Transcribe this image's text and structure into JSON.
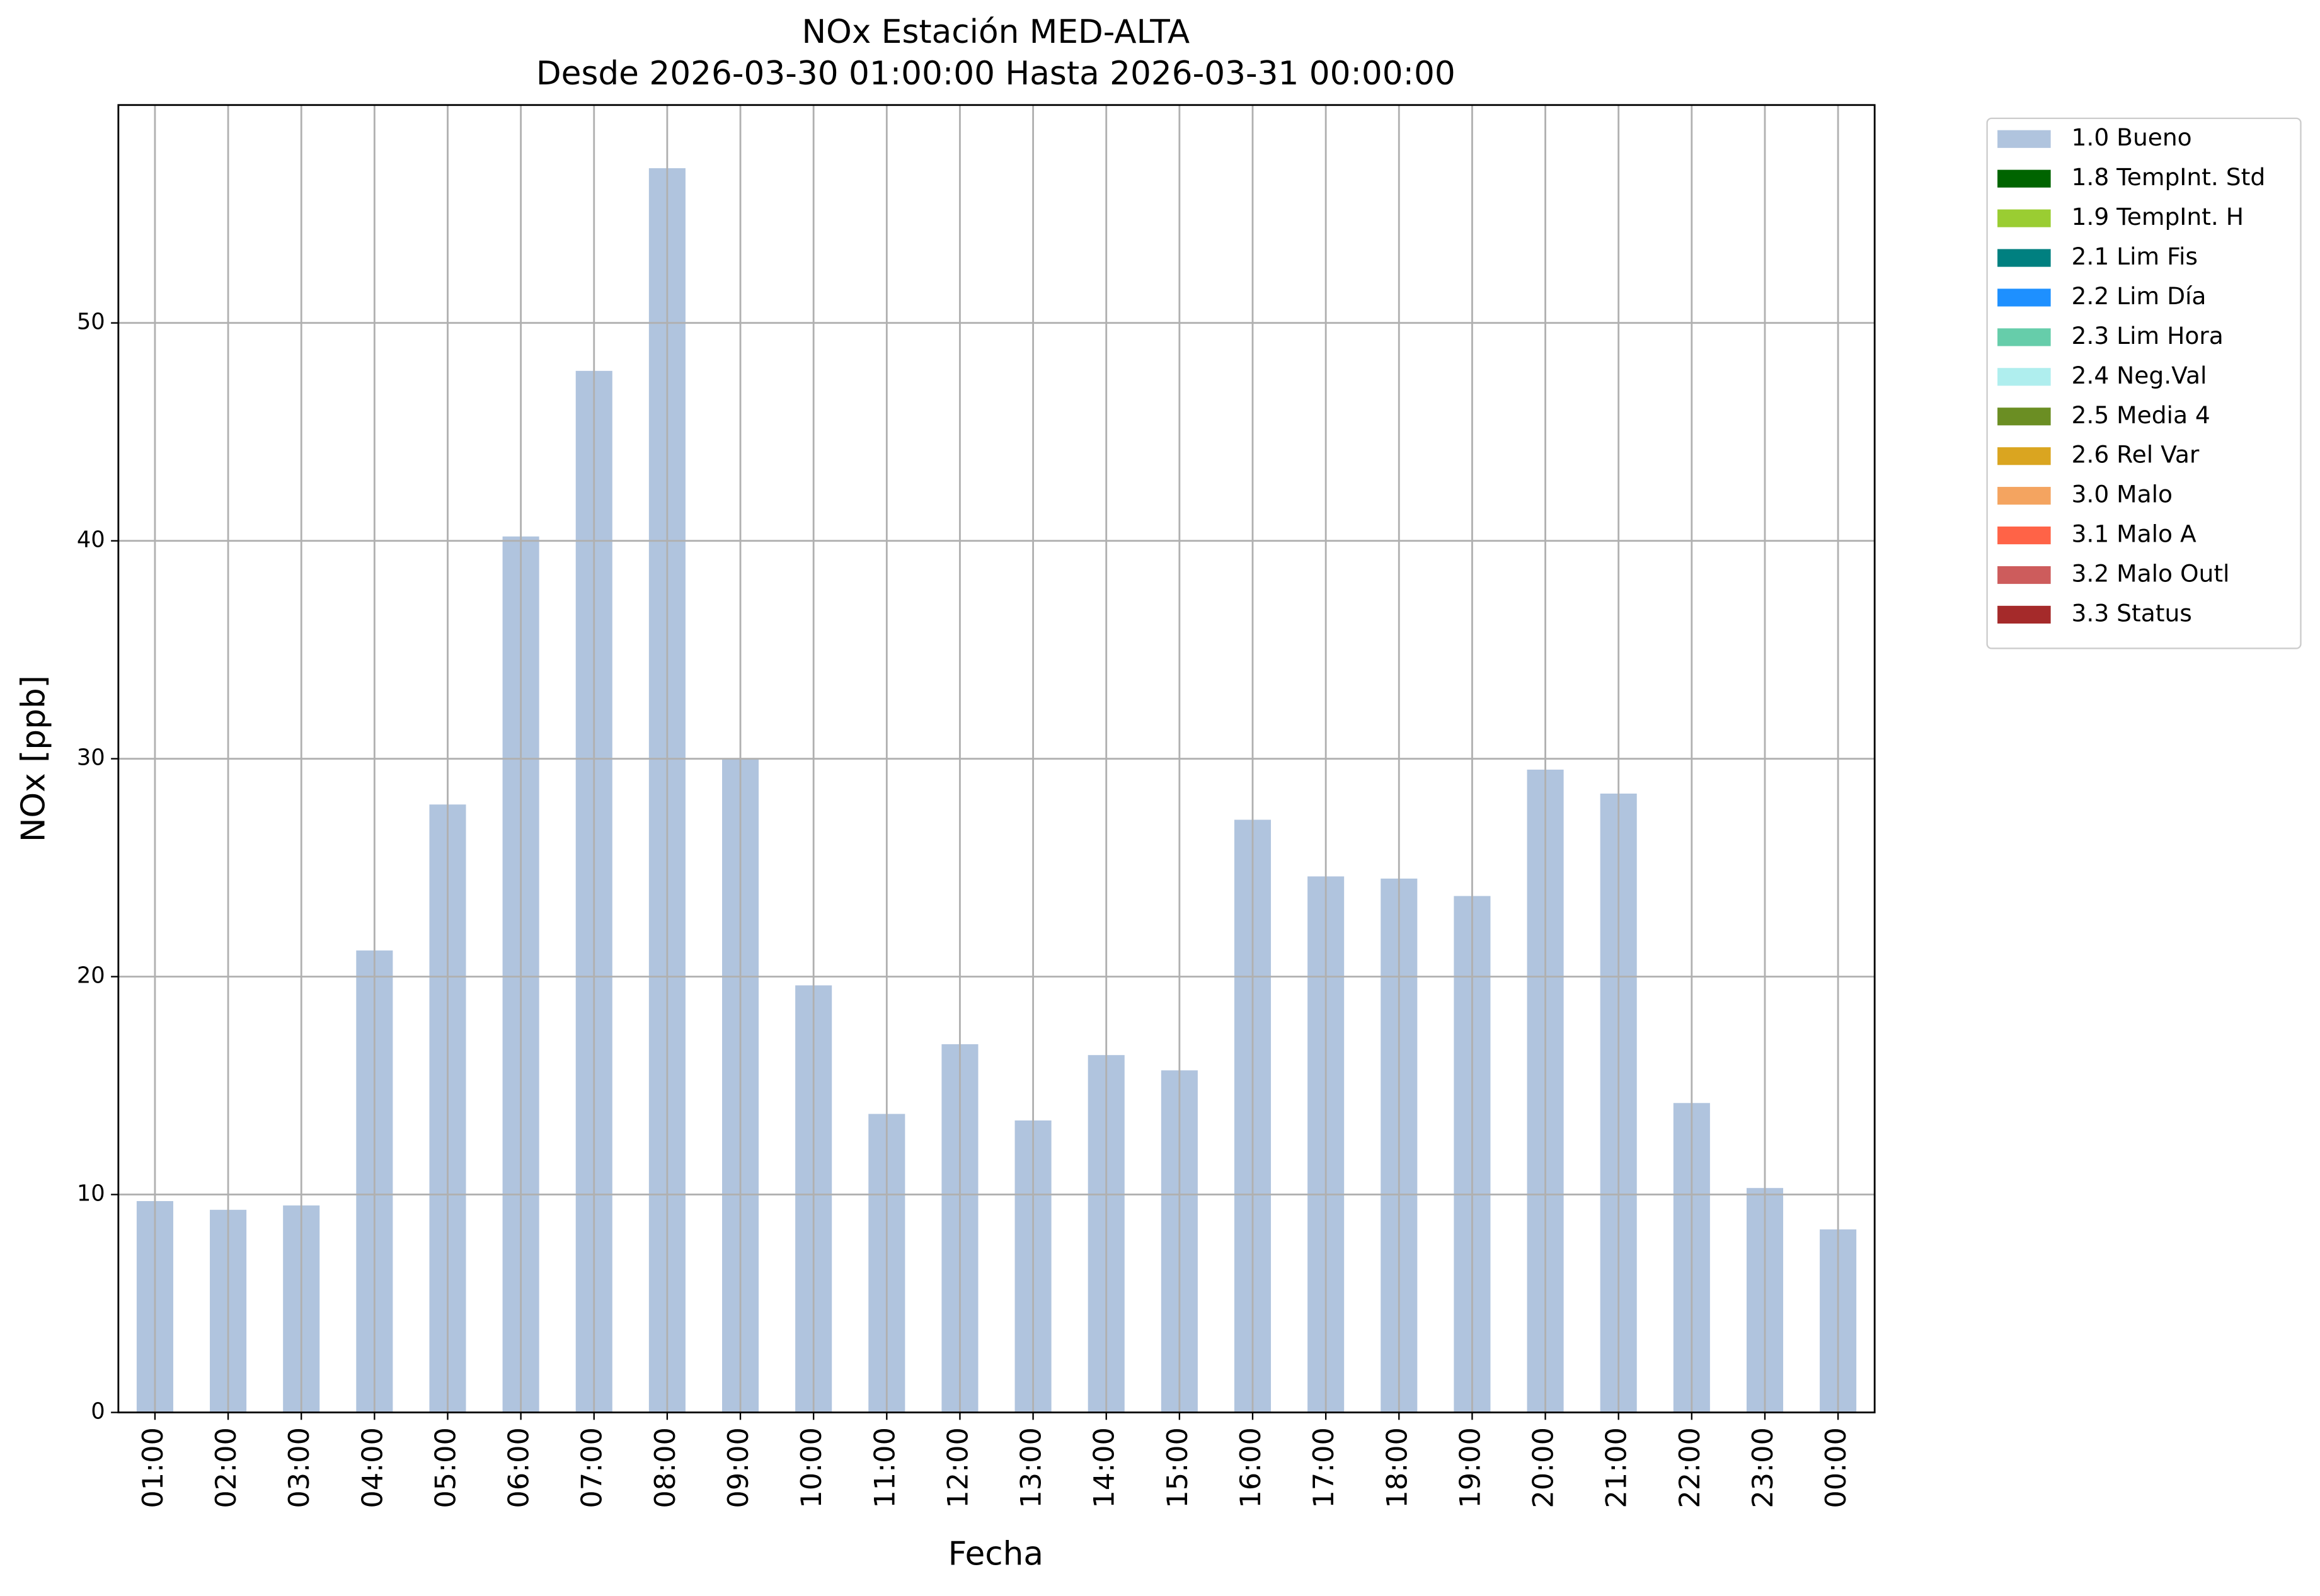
{
  "chart_data": {
    "type": "bar",
    "title": "NOx Estación MED-ALTA",
    "subtitle": "Desde 2026-03-30 01:00:00 Hasta 2026-03-31 00:00:00",
    "x_label": "Fecha",
    "y_label": "NOx [ppb]",
    "categories": [
      "01:00",
      "02:00",
      "03:00",
      "04:00",
      "05:00",
      "06:00",
      "07:00",
      "08:00",
      "09:00",
      "10:00",
      "11:00",
      "12:00",
      "13:00",
      "14:00",
      "15:00",
      "16:00",
      "17:00",
      "18:00",
      "19:00",
      "20:00",
      "21:00",
      "22:00",
      "23:00",
      "00:00"
    ],
    "series": [
      {
        "name": "1.0 Bueno",
        "color": "#b0c4de",
        "values": [
          9.7,
          9.3,
          9.5,
          21.2,
          27.9,
          40.2,
          47.8,
          57.1,
          30.0,
          19.6,
          13.7,
          16.9,
          13.4,
          16.4,
          15.7,
          27.2,
          24.6,
          24.5,
          23.7,
          29.5,
          28.4,
          14.2,
          10.3,
          8.4
        ]
      },
      {
        "name": "1.8 TempInt. Std",
        "color": "#006400"
      },
      {
        "name": "1.9 TempInt. H",
        "color": "#9acd32"
      },
      {
        "name": "2.1 Lim Fis",
        "color": "#008080"
      },
      {
        "name": "2.2 Lim Día",
        "color": "#1e90ff"
      },
      {
        "name": "2.3 Lim Hora",
        "color": "#66cdaa"
      },
      {
        "name": "2.4 Neg.Val",
        "color": "#afeeee"
      },
      {
        "name": "2.5 Media 4",
        "color": "#6b8e23"
      },
      {
        "name": "2.6 Rel Var",
        "color": "#daa520"
      },
      {
        "name": "3.0 Malo",
        "color": "#f4a460"
      },
      {
        "name": "3.1 Malo A",
        "color": "#ff6347"
      },
      {
        "name": "3.2 Malo Outl",
        "color": "#cd5c5c"
      },
      {
        "name": "3.3 Status",
        "color": "#a52a2a"
      }
    ],
    "ylim": [
      0,
      60
    ],
    "yticks": [
      0,
      10,
      20,
      30,
      40,
      50
    ],
    "grid": true,
    "legend": "outside-upper-right"
  }
}
